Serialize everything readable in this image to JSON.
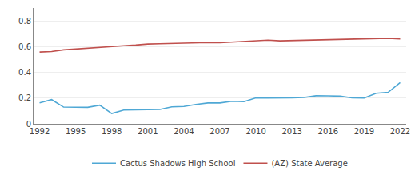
{
  "chart_data": {
    "type": "line",
    "x": [
      1992,
      1993,
      1994,
      1995,
      1996,
      1997,
      1998,
      1999,
      2000,
      2001,
      2002,
      2003,
      2004,
      2005,
      2006,
      2007,
      2008,
      2009,
      2010,
      2011,
      2012,
      2013,
      2014,
      2015,
      2016,
      2017,
      2018,
      2019,
      2020,
      2021,
      2022
    ],
    "series": [
      {
        "name": "Cactus Shadows High School",
        "color": "#4fa8d5",
        "values": [
          0.163,
          0.188,
          0.13,
          0.128,
          0.128,
          0.145,
          0.08,
          0.107,
          0.11,
          0.11,
          0.112,
          0.132,
          0.135,
          0.15,
          0.162,
          0.162,
          0.175,
          0.172,
          0.202,
          0.2,
          0.2,
          0.202,
          0.205,
          0.218,
          0.217,
          0.215,
          0.202,
          0.2,
          0.237,
          0.245,
          0.32
        ]
      },
      {
        "name": "(AZ) State Average",
        "color": "#c0504d",
        "values": [
          0.558,
          0.562,
          0.575,
          0.582,
          0.588,
          0.595,
          0.6,
          0.607,
          0.612,
          0.62,
          0.622,
          0.625,
          0.63,
          0.632,
          0.632,
          0.63,
          0.635,
          0.638,
          0.645,
          0.65,
          0.645,
          0.647,
          0.65,
          0.652,
          0.655,
          0.655,
          0.658,
          0.66,
          0.66,
          0.665,
          0.66
        ]
      }
    ],
    "xlim": [
      1991.5,
      2022.5
    ],
    "xticks": [
      1992,
      1995,
      1998,
      2001,
      2004,
      2007,
      2010,
      2013,
      2016,
      2019,
      2022
    ],
    "ylim": [
      0,
      0.9
    ],
    "yticks": [
      0,
      0.2,
      0.4,
      0.6,
      0.8
    ],
    "grid": true,
    "legend": "bottom"
  }
}
